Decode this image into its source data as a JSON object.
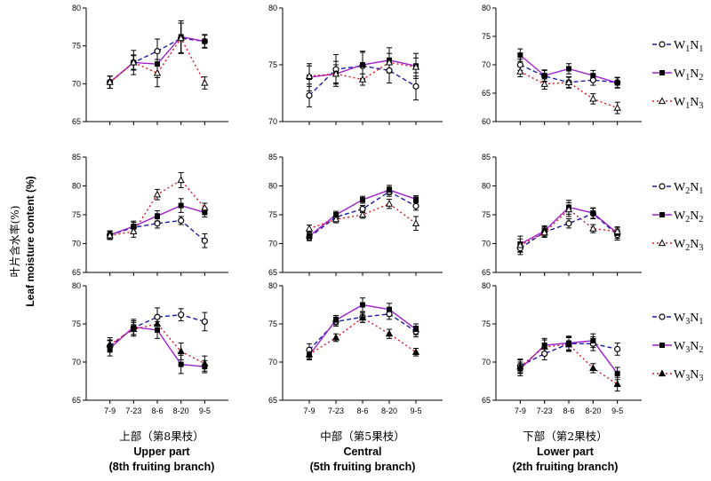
{
  "y_title_zh": "叶片含水率(%)",
  "y_title_en": "Leaf moisture content (%)",
  "columns": [
    {
      "zh": "上部（第8果枝）",
      "en1": "Upper part",
      "en2": "(8th fruiting branch)"
    },
    {
      "zh": "中部（第5果枝）",
      "en1": "Central",
      "en2": "(5th fruiting branch)"
    },
    {
      "zh": "下部（第2果枝）",
      "en1": "Lower part",
      "en2": "(2th fruiting branch)"
    }
  ],
  "legend_rows": [
    [
      {
        "main": "W",
        "sub1": "1",
        "mid": "N",
        "sub2": "1"
      },
      {
        "main": "W",
        "sub1": "1",
        "mid": "N",
        "sub2": "2"
      },
      {
        "main": "W",
        "sub1": "1",
        "mid": "N",
        "sub2": "3"
      }
    ],
    [
      {
        "main": "W",
        "sub1": "2",
        "mid": "N",
        "sub2": "1"
      },
      {
        "main": "W",
        "sub1": "2",
        "mid": "N",
        "sub2": "2"
      },
      {
        "main": "W",
        "sub1": "2",
        "mid": "N",
        "sub2": "3"
      }
    ],
    [
      {
        "main": "W",
        "sub1": "3",
        "mid": "N",
        "sub2": "1"
      },
      {
        "main": "W",
        "sub1": "3",
        "mid": "N",
        "sub2": "2"
      },
      {
        "main": "W",
        "sub1": "3",
        "mid": "N",
        "sub2": "3"
      }
    ]
  ],
  "colors": {
    "N1": "#1a1aa8",
    "N2": "#a020d0",
    "N3": "#e0141e",
    "marker": "#000000"
  },
  "chart_data": {
    "type": "line",
    "categories": [
      "7-9",
      "7-23",
      "8-6",
      "8-20",
      "9-5"
    ],
    "layout": "3 rows (W1, W2, W3) x 3 columns (upper, central, lower part)",
    "panels": [
      {
        "row": 0,
        "col": 0,
        "ylim": [
          65,
          80
        ],
        "yticks": [
          65,
          70,
          75,
          80
        ],
        "show_xticks": false,
        "series": [
          {
            "name": "W1N1",
            "values": [
              70.2,
              72.8,
              74.3,
              76.0,
              75.6
            ],
            "err": [
              0.8,
              0.9,
              1.6,
              2.0,
              0.8
            ]
          },
          {
            "name": "W1N2",
            "values": [
              70.2,
              72.8,
              72.6,
              76.2,
              75.6
            ],
            "err": [
              0.8,
              1.6,
              1.8,
              2.1,
              0.9
            ]
          },
          {
            "name": "W1N3",
            "values": [
              70.2,
              72.8,
              71.4,
              76.0,
              70.1
            ],
            "err": [
              0.8,
              1.0,
              1.8,
              2.0,
              0.8
            ]
          }
        ]
      },
      {
        "row": 0,
        "col": 1,
        "ylim": [
          70,
          80
        ],
        "yticks": [
          70,
          75,
          80
        ],
        "show_xticks": false,
        "series": [
          {
            "name": "W1N1",
            "values": [
              72.3,
              74.6,
              74.9,
              74.5,
              73.1
            ],
            "err": [
              1.0,
              1.3,
              1.2,
              1.1,
              1.2
            ]
          },
          {
            "name": "W1N2",
            "values": [
              73.9,
              74.2,
              75.0,
              75.4,
              74.9
            ],
            "err": [
              1.2,
              1.1,
              1.2,
              1.1,
              1.1
            ]
          },
          {
            "name": "W1N3",
            "values": [
              74.0,
              74.2,
              73.7,
              75.2,
              74.8
            ],
            "err": [
              0.9,
              0.8,
              0.5,
              0.8,
              0.8
            ]
          }
        ]
      },
      {
        "row": 0,
        "col": 2,
        "ylim": [
          60,
          80
        ],
        "yticks": [
          60,
          65,
          70,
          75,
          80
        ],
        "show_xticks": false,
        "series": [
          {
            "name": "W1N1",
            "values": [
              70.0,
              68.0,
              66.9,
              67.3,
              66.9
            ],
            "err": [
              1.0,
              1.0,
              1.0,
              0.9,
              0.9
            ]
          },
          {
            "name": "W1N2",
            "values": [
              71.7,
              68.1,
              69.3,
              68.1,
              66.8
            ],
            "err": [
              1.1,
              1.0,
              0.9,
              0.9,
              0.9
            ]
          },
          {
            "name": "W1N3",
            "values": [
              68.8,
              66.6,
              66.9,
              64.0,
              62.4
            ],
            "err": [
              0.9,
              0.9,
              0.9,
              0.9,
              1.0
            ]
          }
        ]
      },
      {
        "row": 1,
        "col": 0,
        "ylim": [
          65,
          85
        ],
        "yticks": [
          65,
          70,
          75,
          80,
          85
        ],
        "show_xticks": false,
        "series": [
          {
            "name": "W2N1",
            "values": [
              71.5,
              72.8,
              73.5,
              74.0,
              70.5
            ],
            "err": [
              0.7,
              0.9,
              0.8,
              0.7,
              1.2
            ]
          },
          {
            "name": "W2N2",
            "values": [
              71.5,
              73.0,
              74.8,
              76.6,
              75.4
            ],
            "err": [
              0.7,
              0.9,
              0.9,
              1.2,
              0.8
            ]
          },
          {
            "name": "W2N3",
            "values": [
              71.4,
              72.1,
              78.5,
              81.0,
              76.2
            ],
            "err": [
              0.7,
              1.0,
              0.9,
              1.3,
              0.8
            ]
          }
        ]
      },
      {
        "row": 1,
        "col": 1,
        "ylim": [
          65,
          85
        ],
        "yticks": [
          65,
          70,
          75,
          80,
          85
        ],
        "show_xticks": false,
        "series": [
          {
            "name": "W2N1",
            "values": [
              71.1,
              74.6,
              76.0,
              79.0,
              76.5
            ],
            "err": [
              0.6,
              0.6,
              0.6,
              0.8,
              0.7
            ]
          },
          {
            "name": "W2N2",
            "values": [
              71.3,
              75.0,
              77.6,
              79.3,
              77.7
            ],
            "err": [
              0.6,
              0.6,
              0.6,
              0.8,
              0.6
            ]
          },
          {
            "name": "W2N3",
            "values": [
              72.6,
              74.2,
              75.0,
              76.9,
              73.5
            ],
            "err": [
              0.6,
              0.6,
              0.6,
              0.8,
              1.2
            ]
          }
        ]
      },
      {
        "row": 1,
        "col": 2,
        "ylim": [
          65,
          85
        ],
        "yticks": [
          65,
          70,
          75,
          80,
          85
        ],
        "show_xticks": false,
        "series": [
          {
            "name": "W2N1",
            "values": [
              69.2,
              72.0,
              73.5,
              75.2,
              71.5
            ],
            "err": [
              1.1,
              0.9,
              0.8,
              0.9,
              0.9
            ]
          },
          {
            "name": "W2N2",
            "values": [
              69.9,
              72.2,
              76.3,
              75.3,
              71.8
            ],
            "err": [
              1.4,
              0.9,
              1.2,
              0.9,
              0.9
            ]
          },
          {
            "name": "W2N3",
            "values": [
              69.7,
              71.9,
              75.9,
              72.6,
              72.1
            ],
            "err": [
              1.1,
              0.8,
              1.2,
              0.7,
              0.8
            ]
          }
        ]
      },
      {
        "row": 2,
        "col": 0,
        "ylim": [
          65,
          80
        ],
        "yticks": [
          65,
          70,
          75,
          80
        ],
        "show_xticks": true,
        "series": [
          {
            "name": "W3N1",
            "values": [
              72.1,
              74.5,
              75.9,
              76.2,
              75.3
            ],
            "err": [
              0.8,
              0.9,
              1.2,
              0.8,
              1.2
            ]
          },
          {
            "name": "W3N2",
            "values": [
              71.8,
              74.6,
              74.2,
              69.7,
              69.4
            ],
            "err": [
              1.0,
              1.0,
              1.1,
              1.2,
              0.8
            ]
          },
          {
            "name": "W3N3",
            "values": [
              72.3,
              74.3,
              75.0,
              71.4,
              69.8
            ],
            "err": [
              0.9,
              0.9,
              0.9,
              1.1,
              1.0
            ]
          }
        ]
      },
      {
        "row": 2,
        "col": 1,
        "ylim": [
          65,
          80
        ],
        "yticks": [
          65,
          70,
          75,
          80
        ],
        "show_xticks": true,
        "series": [
          {
            "name": "W3N1",
            "values": [
              71.6,
              75.3,
              75.9,
              76.3,
              74.0
            ],
            "err": [
              0.8,
              0.6,
              0.7,
              0.7,
              0.7
            ]
          },
          {
            "name": "W3N2",
            "values": [
              70.9,
              75.5,
              77.5,
              76.9,
              74.3
            ],
            "err": [
              0.6,
              0.6,
              0.9,
              0.8,
              0.7
            ]
          },
          {
            "name": "W3N3",
            "values": [
              71.0,
              73.2,
              75.8,
              73.7,
              71.3
            ],
            "err": [
              0.6,
              0.5,
              0.6,
              0.6,
              0.5
            ]
          }
        ]
      },
      {
        "row": 2,
        "col": 2,
        "ylim": [
          65,
          80
        ],
        "yticks": [
          65,
          70,
          75,
          80
        ],
        "show_xticks": true,
        "series": [
          {
            "name": "W3N1",
            "values": [
              69.5,
              71.1,
              72.4,
              72.4,
              71.7
            ],
            "err": [
              0.9,
              0.8,
              0.9,
              0.9,
              0.8
            ]
          },
          {
            "name": "W3N2",
            "values": [
              69.1,
              72.2,
              72.5,
              72.8,
              68.5
            ],
            "err": [
              0.9,
              0.9,
              0.9,
              0.9,
              0.8
            ]
          },
          {
            "name": "W3N3",
            "values": [
              69.4,
              72.0,
              72.3,
              69.2,
              67.1
            ],
            "err": [
              0.9,
              0.9,
              0.9,
              0.6,
              0.9
            ]
          }
        ]
      }
    ]
  }
}
